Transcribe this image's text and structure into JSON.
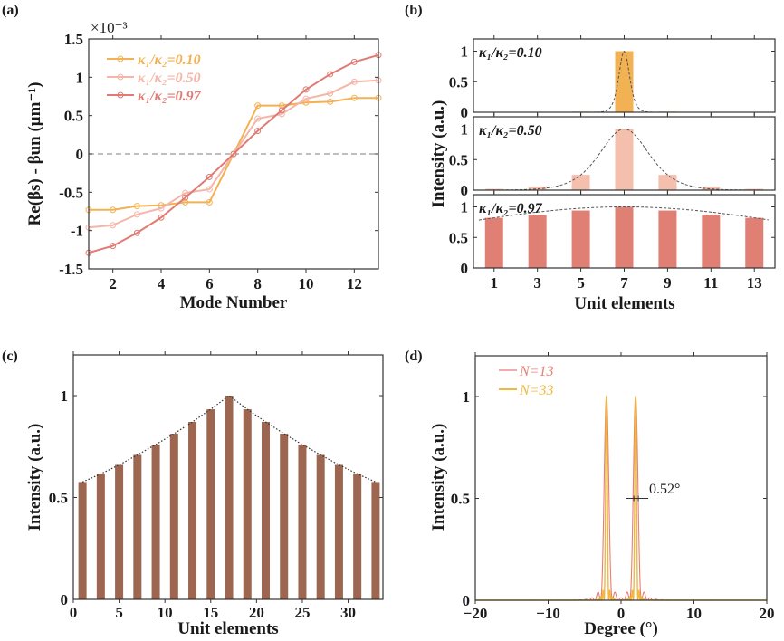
{
  "chart_data": [
    {
      "panel": "(a)",
      "type": "line",
      "xlabel": "Mode Number",
      "ylabel": "Re(βs) - βun (μm⁻¹)",
      "y_multiplier": "×10⁻³",
      "xlim": [
        1,
        13
      ],
      "ylim": [
        -1.5,
        1.5
      ],
      "xticks": [
        2,
        4,
        6,
        8,
        10,
        12
      ],
      "yticks": [
        -1.5,
        -1,
        -0.5,
        0,
        0.5,
        1,
        1.5
      ],
      "ytick_labels": [
        "-1.5",
        "-1",
        "-0.5",
        "0",
        "0.5",
        "1",
        "1.5"
      ],
      "zero_line": "dashed",
      "legend": "top-left",
      "x": [
        1,
        2,
        3,
        4,
        5,
        6,
        7,
        8,
        9,
        10,
        11,
        12,
        13
      ],
      "series": [
        {
          "name": "κ₁/κ₂=0.10",
          "color": "#f2b152",
          "values": [
            -0.73,
            -0.73,
            -0.68,
            -0.67,
            -0.63,
            -0.63,
            0,
            0.63,
            0.63,
            0.67,
            0.68,
            0.73,
            0.73
          ]
        },
        {
          "name": "κ₁/κ₂=0.50",
          "color": "#f4b6a8",
          "values": [
            -0.96,
            -0.93,
            -0.79,
            -0.71,
            -0.51,
            -0.46,
            0,
            0.46,
            0.52,
            0.72,
            0.79,
            0.94,
            0.96
          ]
        },
        {
          "name": "κ₁/κ₂=0.97",
          "color": "#e07b73",
          "values": [
            -1.29,
            -1.2,
            -1.03,
            -0.83,
            -0.57,
            -0.3,
            0,
            0.3,
            0.57,
            0.84,
            1.04,
            1.2,
            1.29
          ]
        }
      ]
    },
    {
      "panel": "(b)",
      "type": "bar",
      "xlabel": "Unit elements",
      "ylabel": "Intensity (a.u.)",
      "categories": [
        1,
        3,
        5,
        7,
        9,
        11,
        13
      ],
      "ylim": [
        0,
        1.2
      ],
      "yticks": [
        0,
        0.5,
        1
      ],
      "envelope": "dashed",
      "subplots": [
        {
          "label": "κ₁/κ₂=0.10",
          "color": "#f2b152",
          "values": [
            0.005,
            0.005,
            0.01,
            1,
            0.01,
            0.005,
            0.005
          ]
        },
        {
          "label": "κ₁/κ₂=0.50",
          "color": "#f5bfae",
          "values": [
            0.02,
            0.06,
            0.25,
            1,
            0.25,
            0.06,
            0.02
          ]
        },
        {
          "label": "κ₁/κ₂=0.97",
          "color": "#e07f74",
          "values": [
            0.82,
            0.87,
            0.94,
            1,
            0.94,
            0.87,
            0.82
          ]
        }
      ]
    },
    {
      "panel": "(c)",
      "type": "bar",
      "xlabel": "Unit elements",
      "ylabel": "Intensity (a.u.)",
      "color": "#9c6650",
      "xlim": [
        0,
        34
      ],
      "ylim": [
        0,
        1.2
      ],
      "xticks": [
        0,
        5,
        10,
        15,
        20,
        25,
        30
      ],
      "yticks": [
        0,
        0.5,
        1
      ],
      "envelope": "dotted",
      "x": [
        1,
        3,
        5,
        7,
        9,
        11,
        13,
        15,
        17,
        19,
        21,
        23,
        25,
        27,
        29,
        31,
        33
      ],
      "values": [
        0.576,
        0.616,
        0.66,
        0.709,
        0.76,
        0.813,
        0.871,
        0.933,
        1.0,
        0.933,
        0.871,
        0.813,
        0.76,
        0.709,
        0.66,
        0.616,
        0.576
      ]
    },
    {
      "panel": "(d)",
      "type": "line",
      "xlabel": "Degree (°)",
      "ylabel": "Intensity (a.u.)",
      "xlim": [
        -20,
        20
      ],
      "ylim": [
        0,
        1.2
      ],
      "xticks": [
        -20,
        -10,
        0,
        10,
        20
      ],
      "yticks": [
        0,
        0.5,
        1
      ],
      "legend": "top-left",
      "peak_positions": [
        -2,
        2
      ],
      "peak_value": 1,
      "annotation": "0.52°",
      "series": [
        {
          "name": "N=13",
          "color": "#e87e74"
        },
        {
          "name": "N=33",
          "color": "#f0b93a"
        }
      ]
    }
  ]
}
